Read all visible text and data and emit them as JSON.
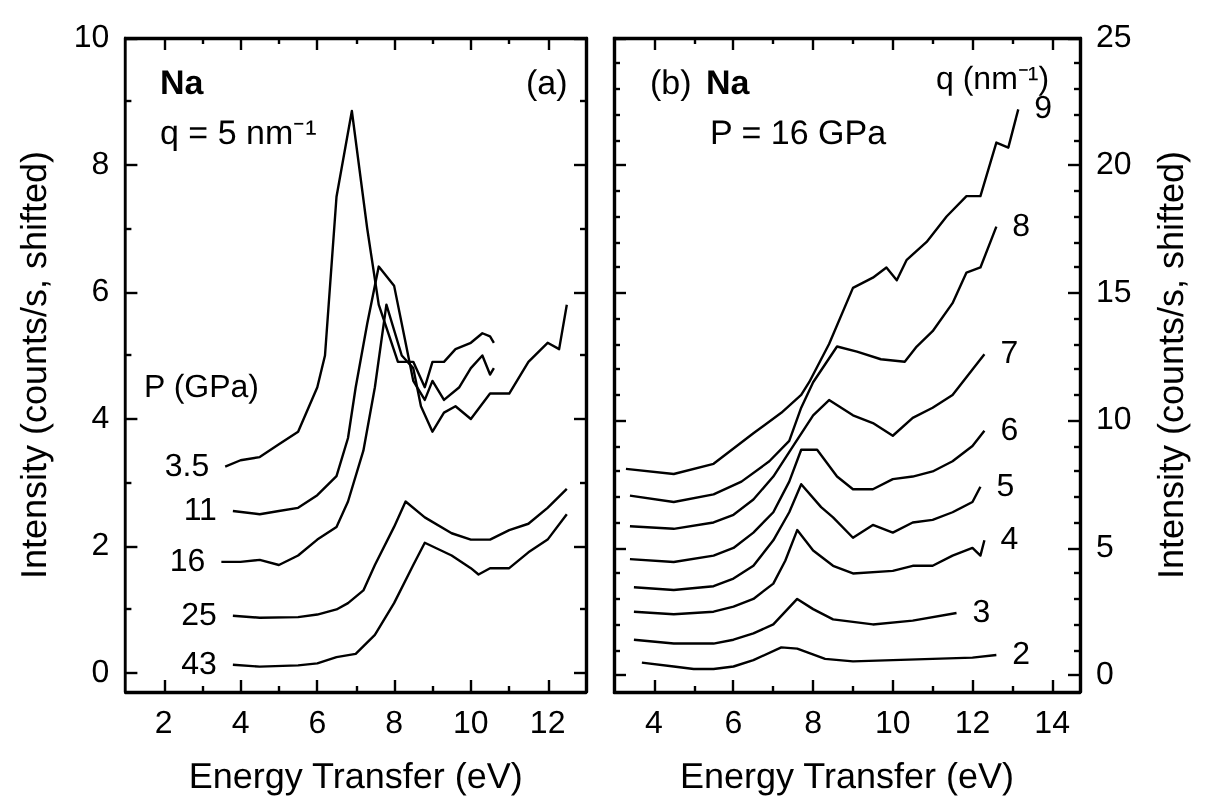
{
  "chart_data": [
    {
      "type": "line",
      "xlabel": "Energy Transfer (eV)",
      "ylabel": "Intensity (counts/s, shifted)",
      "legend_title": "P (GPa)",
      "annotations": [
        "Na",
        "q = 5 nm⁻¹",
        "(a)"
      ],
      "xlim": [
        1,
        13
      ],
      "xticks": [
        2,
        4,
        6,
        8,
        10,
        12
      ],
      "ylim": [
        -0.3,
        10
      ],
      "yticks": [
        0,
        2,
        4,
        6,
        8,
        10
      ],
      "series": [
        {
          "name": "3.5",
          "color": "#000000",
          "x": [
            3.6,
            4,
            4.5,
            5,
            5.5,
            6,
            6.2,
            6.5,
            6.9,
            7.3,
            7.6,
            8.1,
            8.5,
            8.8,
            9,
            9.3,
            9.6,
            10,
            10.3,
            10.5,
            10.6
          ],
          "values": [
            3.25,
            3.35,
            3.4,
            3.6,
            3.8,
            4.5,
            5.0,
            7.5,
            8.85,
            7.0,
            5.8,
            4.9,
            4.9,
            4.5,
            4.9,
            4.9,
            5.1,
            5.2,
            5.35,
            5.3,
            5.2
          ]
        },
        {
          "name": "11",
          "color": "#000000",
          "x": [
            3.8,
            4.5,
            5,
            5.5,
            6,
            6.5,
            6.8,
            7,
            7.3,
            7.6,
            8,
            8.3,
            8.5,
            8.8,
            9,
            9.3,
            9.7,
            10,
            10.3,
            10.5,
            10.6
          ],
          "values": [
            2.55,
            2.5,
            2.55,
            2.6,
            2.8,
            3.1,
            3.7,
            4.5,
            5.5,
            6.4,
            6.1,
            5.2,
            4.6,
            4.3,
            4.6,
            4.3,
            4.5,
            4.8,
            5.0,
            4.7,
            4.8
          ]
        },
        {
          "name": "16",
          "color": "#000000",
          "x": [
            3.5,
            4,
            4.5,
            5,
            5.5,
            6,
            6.5,
            6.8,
            7.2,
            7.5,
            7.8,
            8.2,
            8.5,
            8.7,
            9,
            9.3,
            9.6,
            10,
            10.5,
            11,
            11.5,
            12,
            12.3,
            12.5
          ],
          "values": [
            1.75,
            1.75,
            1.78,
            1.7,
            1.85,
            2.1,
            2.3,
            2.7,
            3.5,
            4.5,
            5.8,
            5.0,
            4.8,
            4.2,
            3.8,
            4.1,
            4.2,
            4.0,
            4.4,
            4.4,
            4.9,
            5.2,
            5.1,
            5.8
          ]
        },
        {
          "name": "25",
          "color": "#000000",
          "x": [
            3.8,
            4.5,
            5.5,
            6,
            6.5,
            6.8,
            7.2,
            7.5,
            8,
            8.3,
            8.8,
            9.5,
            10,
            10.5,
            11,
            11.5,
            12,
            12.5
          ],
          "values": [
            0.9,
            0.87,
            0.88,
            0.92,
            1.0,
            1.1,
            1.3,
            1.7,
            2.3,
            2.7,
            2.45,
            2.2,
            2.1,
            2.1,
            2.25,
            2.35,
            2.6,
            2.9
          ]
        },
        {
          "name": "43",
          "color": "#000000",
          "x": [
            3.8,
            4.5,
            5.5,
            6,
            6.5,
            7,
            7.5,
            8,
            8.5,
            8.8,
            9.5,
            10,
            10.2,
            10.5,
            11,
            11.5,
            12,
            12.5
          ],
          "values": [
            0.13,
            0.1,
            0.12,
            0.15,
            0.25,
            0.3,
            0.6,
            1.1,
            1.7,
            2.05,
            1.85,
            1.65,
            1.55,
            1.65,
            1.65,
            1.9,
            2.1,
            2.5
          ]
        }
      ]
    },
    {
      "type": "line",
      "xlabel": "Energy Transfer (eV)",
      "ylabel": "Intensity (counts/s, shifted)",
      "legend_title": "q (nm⁻¹)",
      "annotations": [
        "(b)",
        "Na",
        "P = 16 GPa"
      ],
      "xlim": [
        3,
        14.7
      ],
      "xticks": [
        4,
        6,
        8,
        10,
        12,
        14
      ],
      "ylim": [
        -0.65,
        25
      ],
      "yticks": [
        0,
        5,
        10,
        15,
        20,
        25
      ],
      "series": [
        {
          "name": "2",
          "color": "#000000",
          "x": [
            3.7,
            4.5,
            5,
            5.5,
            6,
            6.5,
            7.2,
            7.6,
            8.3,
            9,
            10,
            11,
            12,
            12.6
          ],
          "values": [
            0.5,
            0.35,
            0.25,
            0.25,
            0.35,
            0.6,
            1.1,
            1.05,
            0.65,
            0.55,
            0.6,
            0.65,
            0.7,
            0.8
          ]
        },
        {
          "name": "3",
          "color": "#000000",
          "x": [
            3.5,
            4.5,
            5.5,
            6,
            6.5,
            7,
            7.3,
            7.6,
            8,
            8.5,
            9.5,
            10.5,
            11.6
          ],
          "values": [
            1.4,
            1.25,
            1.25,
            1.4,
            1.65,
            2.0,
            2.5,
            3.0,
            2.6,
            2.2,
            2.0,
            2.15,
            2.45
          ]
        },
        {
          "name": "4",
          "color": "#000000",
          "x": [
            3.5,
            4.5,
            5.5,
            6,
            6.5,
            7,
            7.3,
            7.6,
            8,
            8.5,
            9,
            10,
            10.5,
            11,
            11.5,
            12,
            12.2,
            12.3
          ],
          "values": [
            2.5,
            2.4,
            2.5,
            2.7,
            3.0,
            3.6,
            4.5,
            5.7,
            4.9,
            4.3,
            4.0,
            4.1,
            4.3,
            4.3,
            4.7,
            5.0,
            4.7,
            5.3
          ]
        },
        {
          "name": "5",
          "color": "#000000",
          "x": [
            3.5,
            4.5,
            5.5,
            6,
            6.5,
            7,
            7.4,
            7.7,
            8.2,
            8.5,
            9,
            9.5,
            10,
            10.5,
            11,
            11.5,
            12,
            12.2
          ],
          "values": [
            3.46,
            3.35,
            3.5,
            3.8,
            4.3,
            5.3,
            6.4,
            7.5,
            6.6,
            6.2,
            5.4,
            5.9,
            5.6,
            6.0,
            6.1,
            6.4,
            6.8,
            7.4
          ]
        },
        {
          "name": "6",
          "color": "#000000",
          "x": [
            3.4,
            4.5,
            5.5,
            6,
            6.5,
            7,
            7.4,
            7.7,
            8.1,
            8.6,
            9,
            9.5,
            10,
            10.5,
            11,
            11.5,
            12,
            12.3
          ],
          "values": [
            4.56,
            4.45,
            4.7,
            5.0,
            5.6,
            6.4,
            7.6,
            8.85,
            8.85,
            7.8,
            7.3,
            7.3,
            7.7,
            7.8,
            8.0,
            8.4,
            9.0,
            9.6
          ]
        },
        {
          "name": "7",
          "color": "#000000",
          "x": [
            3.4,
            4.5,
            5.5,
            6,
            6.5,
            7,
            7.5,
            8,
            8.4,
            9,
            9.5,
            10,
            10.5,
            11,
            11.5,
            12,
            12.3
          ],
          "values": [
            5.85,
            5.75,
            6.0,
            6.3,
            6.9,
            7.8,
            9.0,
            10.2,
            10.8,
            10.2,
            9.9,
            9.4,
            10.1,
            10.5,
            11.0,
            12.0,
            12.6
          ]
        },
        {
          "name": "8",
          "color": "#000000",
          "x": [
            3.4,
            4.5,
            5.5,
            6.2,
            6.9,
            7.4,
            7.7,
            8,
            8.6,
            9.1,
            9.7,
            10.3,
            10.6,
            11,
            11.5,
            11.85,
            12.2,
            12.6
          ],
          "values": [
            7.05,
            6.8,
            7.1,
            7.6,
            8.4,
            9.2,
            10.5,
            11.5,
            12.9,
            12.7,
            12.4,
            12.3,
            12.9,
            13.5,
            14.6,
            15.8,
            16.0,
            17.6
          ]
        },
        {
          "name": "9",
          "color": "#000000",
          "x": [
            3.3,
            4.5,
            5.5,
            6.5,
            7.2,
            7.7,
            7.9,
            8.4,
            9,
            9.5,
            9.84,
            10.1,
            10.35,
            10.85,
            11.35,
            11.85,
            12.2,
            12.6,
            12.9,
            13.15
          ],
          "values": [
            8.1,
            7.9,
            8.3,
            9.5,
            10.3,
            11.0,
            11.5,
            13.0,
            15.2,
            15.6,
            16.0,
            15.5,
            16.3,
            17.0,
            18.0,
            18.8,
            18.8,
            20.9,
            20.7,
            22.2
          ]
        }
      ]
    }
  ]
}
